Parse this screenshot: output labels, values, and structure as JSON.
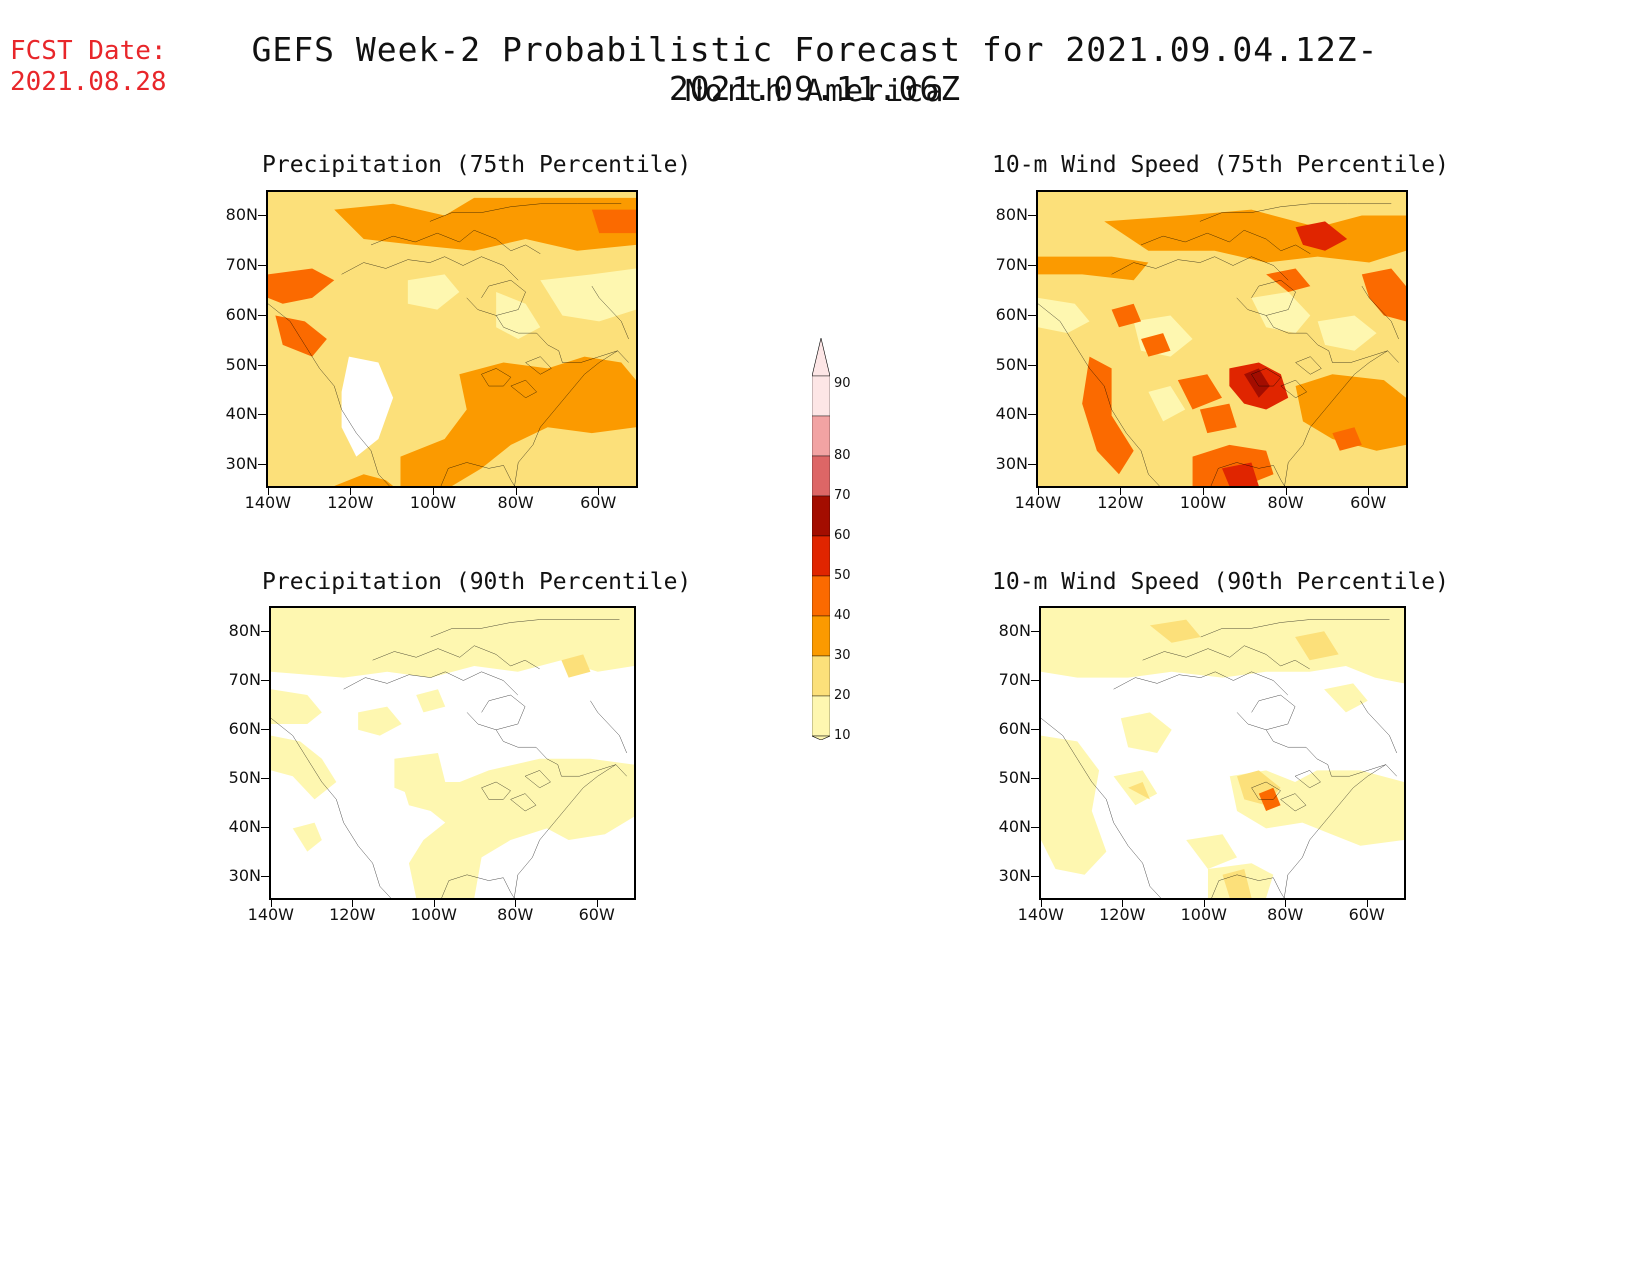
{
  "header": {
    "fcst_label": "FCST Date:",
    "fcst_date": "2021.08.28",
    "title": "GEFS Week-2 Probabilistic Forecast for 2021.09.04.12Z-2021.09.11.06Z",
    "subtitle": "North America"
  },
  "map_axes": {
    "lat_ticks": [
      "80N",
      "70N",
      "60N",
      "50N",
      "40N",
      "30N"
    ],
    "lon_ticks": [
      "140W",
      "120W",
      "100W",
      "80W",
      "60W"
    ]
  },
  "panels": [
    {
      "id": "precip75",
      "title": "Precipitation (75th Percentile)"
    },
    {
      "id": "wind75",
      "title": "10-m Wind Speed (75th Percentile)"
    },
    {
      "id": "precip90",
      "title": "Precipitation (90th Percentile)"
    },
    {
      "id": "wind90",
      "title": "10-m Wind Speed (90th Percentile)"
    }
  ],
  "colorbar": {
    "levels": [
      "90",
      "80",
      "70",
      "60",
      "50",
      "40",
      "30",
      "20",
      "10"
    ],
    "colors": [
      "#fde6e6",
      "#f2a3a3",
      "#dd6666",
      "#a30d00",
      "#e02500",
      "#fb6a00",
      "#fb9a00",
      "#fce07a",
      "#fef7b0"
    ]
  },
  "palette": {
    "p10": "#fef7b0",
    "p20": "#fce07a",
    "p30": "#fb9a00",
    "p40": "#fb6a00",
    "p50": "#e02500",
    "p60": "#a30d00",
    "none": "#ffffff"
  }
}
